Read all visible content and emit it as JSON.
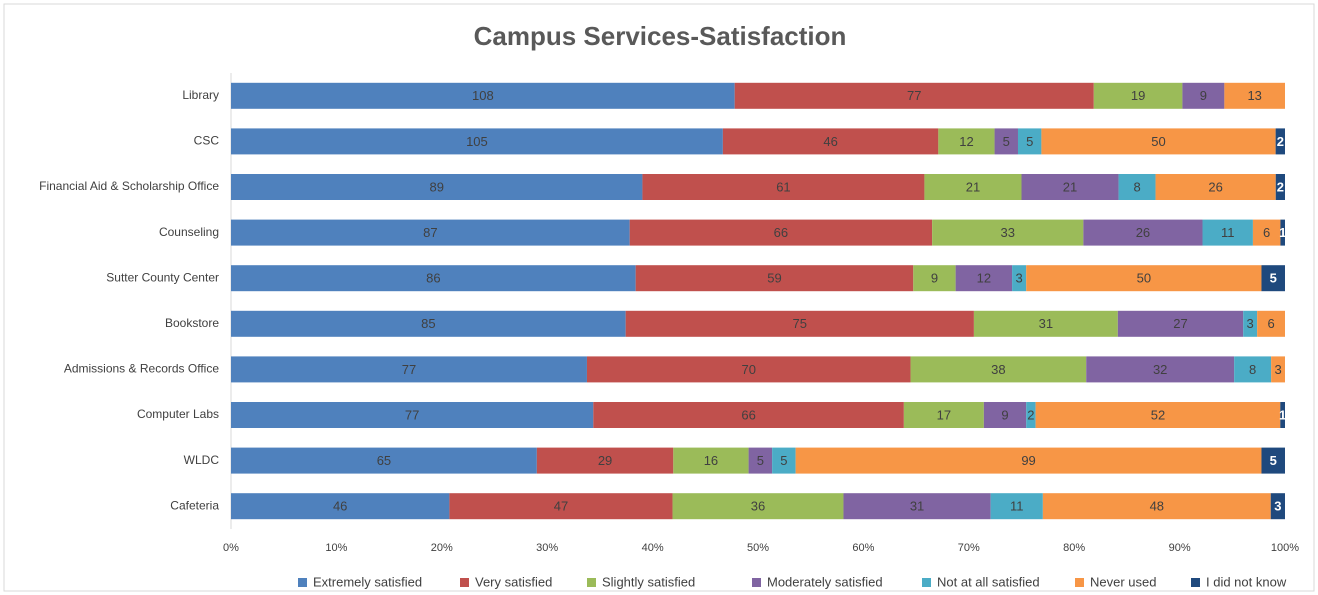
{
  "chart_data": {
    "type": "bar100h",
    "title": "Campus Services-Satisfaction",
    "categories": [
      "Library",
      "CSC",
      "Financial Aid & Scholarship Office",
      "Counseling",
      "Sutter County Center",
      "Bookstore",
      "Admissions & Records Office",
      "Computer Labs",
      "WLDC",
      "Cafeteria"
    ],
    "series": [
      {
        "name": "Extremely satisfied",
        "color": "#4f81bd",
        "values": [
          108,
          105,
          89,
          87,
          86,
          85,
          77,
          77,
          65,
          46
        ]
      },
      {
        "name": "Very satisfied",
        "color": "#c0504d",
        "values": [
          77,
          46,
          61,
          66,
          59,
          75,
          70,
          66,
          29,
          47
        ]
      },
      {
        "name": "Slightly satisfied",
        "color": "#9bbb59",
        "values": [
          19,
          12,
          21,
          33,
          9,
          31,
          38,
          17,
          16,
          36
        ]
      },
      {
        "name": "Moderately satisfied",
        "color": "#8064a2",
        "values": [
          9,
          5,
          21,
          26,
          12,
          27,
          32,
          9,
          5,
          31
        ]
      },
      {
        "name": "Not at all satisfied",
        "color": "#4bacc6",
        "values": [
          null,
          5,
          8,
          11,
          3,
          3,
          8,
          2,
          5,
          11
        ]
      },
      {
        "name": "Never used",
        "color": "#f79646",
        "values": [
          13,
          50,
          26,
          6,
          50,
          6,
          3,
          52,
          99,
          48
        ]
      },
      {
        "name": "I did not know",
        "color": "#1f497d",
        "values": [
          null,
          2,
          2,
          1,
          5,
          null,
          null,
          1,
          5,
          3
        ]
      }
    ],
    "xlim": [
      0,
      100
    ],
    "xticks": [
      {
        "value": 0,
        "label": "0%"
      },
      {
        "value": 10,
        "label": "10%"
      },
      {
        "value": 20,
        "label": "20%"
      },
      {
        "value": 30,
        "label": "30%"
      },
      {
        "value": 40,
        "label": "40%"
      },
      {
        "value": 50,
        "label": "50%"
      },
      {
        "value": 60,
        "label": "60%"
      },
      {
        "value": 70,
        "label": "70%"
      },
      {
        "value": 80,
        "label": "80%"
      },
      {
        "value": 90,
        "label": "90%"
      },
      {
        "value": 100,
        "label": "100%"
      }
    ],
    "grid": false,
    "legend": "bottom"
  }
}
